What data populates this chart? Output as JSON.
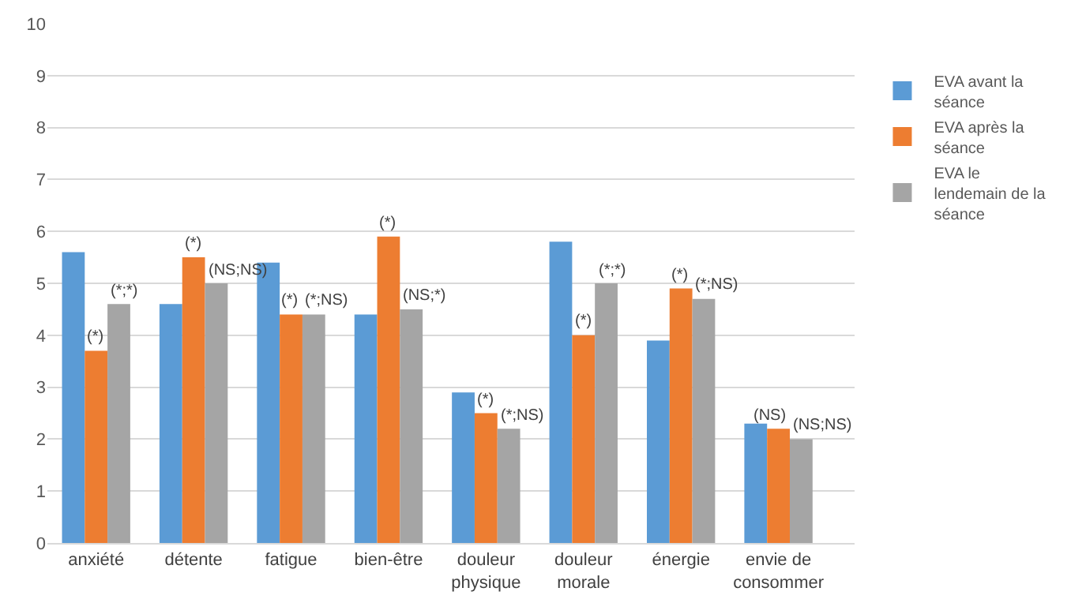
{
  "chart_data": {
    "type": "bar",
    "categories": [
      "anxiété",
      "détente",
      "fatigue",
      "bien-être",
      "douleur physique",
      "douleur morale",
      "énergie",
      "envie de consommer"
    ],
    "series": [
      {
        "name": "EVA avant la séance",
        "color": "#5b9bd5",
        "values": [
          5.6,
          4.6,
          5.4,
          4.4,
          2.9,
          5.8,
          3.9,
          2.3
        ]
      },
      {
        "name": "EVA après la séance",
        "color": "#ed7d31",
        "values": [
          3.7,
          5.5,
          4.4,
          5.9,
          2.5,
          4.0,
          4.9,
          2.2
        ],
        "value_labels": [
          "(*)",
          "(*)",
          "(*)",
          "(*)",
          "(*)",
          "(*)",
          "(*)",
          "(NS)"
        ]
      },
      {
        "name": "EVA le lendemain de la séance",
        "color": "#a5a5a5",
        "values": [
          4.6,
          5.0,
          4.4,
          4.5,
          2.2,
          5.0,
          4.7,
          2.0
        ],
        "value_labels": [
          "(*;*)",
          "(NS;NS)",
          "(*;NS)",
          "(NS;*)",
          "(*;NS)",
          "(*;*)",
          "(*;NS)",
          "(NS;NS)"
        ]
      }
    ],
    "ylim": [
      0,
      10
    ],
    "yticks": [
      0,
      1,
      2,
      3,
      4,
      5,
      6,
      7,
      8,
      9,
      10
    ],
    "grid": "y",
    "legend": "right"
  }
}
